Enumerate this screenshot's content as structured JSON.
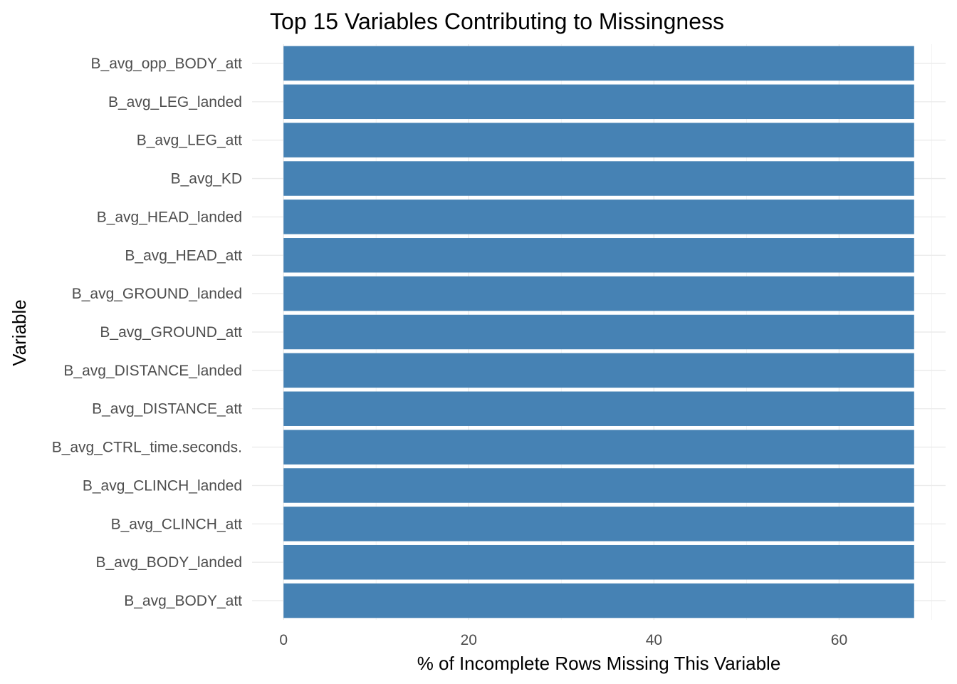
{
  "chart_data": {
    "type": "bar",
    "orientation": "horizontal",
    "title": "Top 15 Variables Contributing to Missingness",
    "xlabel": "% of Incomplete Rows Missing This Variable",
    "ylabel": "Variable",
    "categories": [
      "B_avg_BODY_att",
      "B_avg_BODY_landed",
      "B_avg_CLINCH_att",
      "B_avg_CLINCH_landed",
      "B_avg_CTRL_time.seconds.",
      "B_avg_DISTANCE_att",
      "B_avg_DISTANCE_landed",
      "B_avg_GROUND_att",
      "B_avg_GROUND_landed",
      "B_avg_HEAD_att",
      "B_avg_HEAD_landed",
      "B_avg_KD",
      "B_avg_LEG_att",
      "B_avg_LEG_landed",
      "B_avg_opp_BODY_att"
    ],
    "values": [
      68.1,
      68.1,
      68.1,
      68.1,
      68.1,
      68.1,
      68.1,
      68.1,
      68.1,
      68.1,
      68.1,
      68.1,
      68.1,
      68.1,
      68.1
    ],
    "xlim": [
      -3.4,
      71.5
    ],
    "xticks": [
      0,
      20,
      40,
      60
    ],
    "xtick_labels": [
      "0",
      "20",
      "40",
      "60"
    ],
    "grid": true,
    "bar_color": "#4682b4"
  }
}
